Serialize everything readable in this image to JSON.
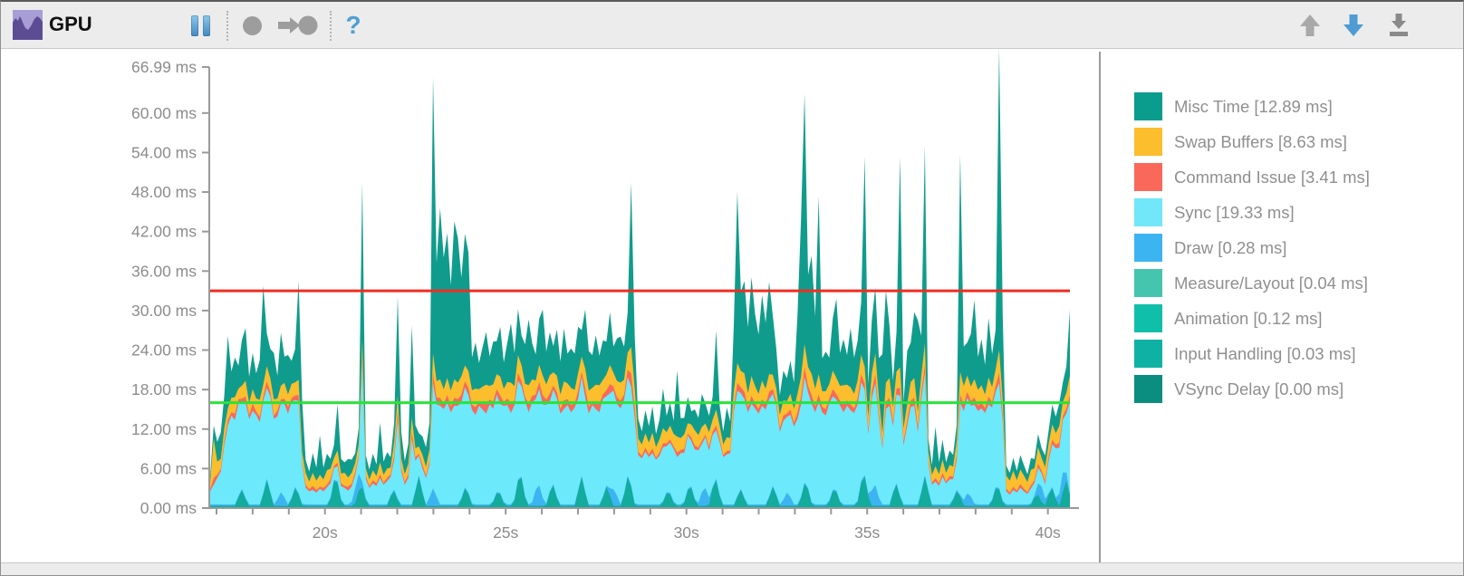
{
  "toolbar": {
    "title": "GPU",
    "pause_label": "Pause",
    "record_label": "Record",
    "attach_label": "Attach",
    "help_label": "?",
    "scroll_up_label": "Scroll up",
    "scroll_down_label": "Scroll down",
    "save_label": "Export"
  },
  "legend": {
    "items": [
      {
        "label": "Misc Time [12.89 ms]",
        "color": "#0a9c8d"
      },
      {
        "label": "Swap Buffers [8.63 ms]",
        "color": "#fcbe2d"
      },
      {
        "label": "Command Issue [3.41 ms]",
        "color": "#fa685a"
      },
      {
        "label": "Sync [19.33 ms]",
        "color": "#71e7f9"
      },
      {
        "label": "Draw [0.28 ms]",
        "color": "#3cb4f1"
      },
      {
        "label": "Measure/Layout [0.04 ms]",
        "color": "#45c5ad"
      },
      {
        "label": "Animation [0.12 ms]",
        "color": "#10bfa9"
      },
      {
        "label": "Input Handling [0.03 ms]",
        "color": "#0db2a5"
      },
      {
        "label": "VSync Delay [0.00 ms]",
        "color": "#0b8d7f"
      }
    ]
  },
  "chart_data": {
    "type": "area",
    "stacked": true,
    "unit": "ms",
    "axis_color": "#999999",
    "label_color": "#8c8c8c",
    "y_max": 66.99,
    "y_ticks": [
      {
        "label": "66.99 ms",
        "value": 66.99
      },
      {
        "label": "60.00 ms",
        "value": 60
      },
      {
        "label": "54.00 ms",
        "value": 54
      },
      {
        "label": "48.00 ms",
        "value": 48
      },
      {
        "label": "42.00 ms",
        "value": 42
      },
      {
        "label": "36.00 ms",
        "value": 36
      },
      {
        "label": "30.00 ms",
        "value": 30
      },
      {
        "label": "24.00 ms",
        "value": 24
      },
      {
        "label": "18.00 ms",
        "value": 18
      },
      {
        "label": "12.00 ms",
        "value": 12
      },
      {
        "label": "6.00 ms",
        "value": 6
      },
      {
        "label": "0.00 ms",
        "value": 0
      }
    ],
    "x_ticks": [
      {
        "label": "20s",
        "value": 20
      },
      {
        "label": "25s",
        "value": 25
      },
      {
        "label": "30s",
        "value": 30
      },
      {
        "label": "35s",
        "value": 35
      },
      {
        "label": "40s",
        "value": 40
      }
    ],
    "x_minor_tick_step_s": 1,
    "x_domain_s": [
      16.83,
      40.61
    ],
    "thresholds": [
      {
        "name": "30fps-line",
        "value_ms": 33,
        "color": "#ef2e22"
      },
      {
        "name": "60fps-line",
        "value_ms": 16,
        "color": "#2be23a"
      }
    ],
    "series_stack_bottom_to_top": [
      {
        "name": "VSync Delay / Input Handling / Animation / Measure-Layout",
        "color": "#12ab9c",
        "baseline_ms": 0.35,
        "spikes_t_v": [
          [
            17.7,
            2.5
          ],
          [
            18.4,
            4
          ],
          [
            19.2,
            3
          ],
          [
            20.3,
            5
          ],
          [
            21.0,
            3.5
          ],
          [
            21.9,
            2.5
          ],
          [
            22.6,
            4.5
          ],
          [
            23.9,
            3
          ],
          [
            24.8,
            2.5
          ],
          [
            25.4,
            5.5
          ],
          [
            26.3,
            3.5
          ],
          [
            27.1,
            4.5
          ],
          [
            27.8,
            3
          ],
          [
            28.4,
            5
          ],
          [
            29.5,
            2.5
          ],
          [
            30.1,
            3.5
          ],
          [
            30.8,
            4.5
          ],
          [
            31.5,
            2.5
          ],
          [
            32.4,
            3
          ],
          [
            33.3,
            4
          ],
          [
            34.1,
            3
          ],
          [
            34.9,
            5.5
          ],
          [
            35.8,
            3.5
          ],
          [
            36.6,
            4.5
          ],
          [
            37.5,
            2.5
          ],
          [
            38.6,
            3.5
          ],
          [
            39.7,
            2
          ],
          [
            40.1,
            3
          ],
          [
            40.5,
            4
          ]
        ]
      },
      {
        "name": "Draw",
        "color": "#3cb4f1",
        "baseline_ms": 0.2,
        "spikes_t_v": [
          [
            18.8,
            2
          ],
          [
            20.9,
            3
          ],
          [
            23.0,
            2.5
          ],
          [
            25.9,
            3.5
          ],
          [
            28.0,
            2.5
          ],
          [
            30.5,
            3
          ],
          [
            32.8,
            2
          ],
          [
            35.2,
            3.5
          ],
          [
            37.8,
            2
          ],
          [
            39.8,
            2.5
          ],
          [
            40.4,
            3
          ]
        ]
      },
      {
        "name": "Sync",
        "color": "#6ce9fb",
        "values": [
          2,
          3,
          4,
          5,
          9,
          12,
          13.5,
          12.8,
          14,
          13.2,
          14.5,
          13,
          14.2,
          13.6,
          12.5,
          14,
          13.8,
          14.5,
          13,
          12.6,
          13.5,
          14.2,
          13.8,
          14.6,
          13.2,
          14,
          6,
          2.5,
          2,
          2.2,
          1.8,
          2.4,
          2,
          2.6,
          2.2,
          1.8,
          2.3,
          2,
          2.5,
          2.1,
          2.3,
          2,
          2.4,
          18,
          3,
          2.5,
          3.2,
          2.8,
          4,
          3,
          3.5,
          2.8,
          4.5,
          12,
          5,
          3,
          4,
          10,
          4.5,
          3,
          3.5,
          4,
          5,
          16,
          14,
          15,
          14.5,
          15.5,
          14,
          15,
          15,
          14.5,
          15.2,
          14.8,
          14.2,
          13.6,
          15,
          14.4,
          13.8,
          15.2,
          14,
          14.8,
          13.5,
          14.6,
          15.1,
          13.9,
          14.3,
          15,
          13.7,
          14.5,
          14,
          15.2,
          13.8,
          14.6,
          14.2,
          15,
          13.6,
          14.4,
          14.9,
          13.8,
          14.5,
          15.1,
          14,
          14.7,
          13.9,
          15,
          14.3,
          13.8,
          15.1,
          14.5,
          14,
          14.8,
          13.6,
          14.4,
          15,
          13.9,
          14.6,
          14.2,
          15,
          15,
          13,
          7.5,
          7,
          8,
          7.2,
          7.8,
          6.8,
          7.4,
          8.2,
          7,
          7.6,
          8,
          7.2,
          7.8,
          7.4,
          8.1,
          6.9,
          7.5,
          8,
          7.3,
          7.7,
          7.1,
          7.9,
          7.4,
          8,
          7.2,
          7.6,
          7.8,
          14,
          16,
          14.5,
          15,
          14,
          15.3,
          14.6,
          13.8,
          15,
          14.4,
          14.8,
          14,
          13.5,
          11,
          12,
          11.5,
          12.5,
          11.8,
          13,
          14,
          16,
          14.5,
          15,
          14,
          15.5,
          14,
          13.5,
          14.8,
          14.2,
          13.8,
          14.5,
          14,
          15,
          14.3,
          13.9,
          14.6,
          15,
          13,
          9,
          14,
          15.5,
          12,
          8.5,
          14.5,
          15,
          10,
          13.5,
          15.2,
          9,
          12,
          14.8,
          15,
          11,
          14,
          15.5,
          4,
          3,
          3.5,
          2.8,
          4.2,
          3.2,
          3.8,
          3,
          4.5,
          14,
          13.5,
          14.5,
          13.8,
          15,
          14.2,
          14.6,
          13.9,
          15.2,
          14,
          14.5,
          16,
          12,
          2,
          1.5,
          2.2,
          1.8,
          2.5,
          2,
          1.6,
          2.3,
          1.9,
          2.4,
          2,
          2.2,
          5,
          6.5,
          7.5,
          7,
          8,
          9,
          14
        ]
      },
      {
        "name": "Command Issue",
        "color": "#fa685a",
        "values": [
          0.3,
          1,
          0.5,
          0.4,
          0.6,
          0.8,
          0.5,
          1,
          0.7,
          0.5,
          0.9,
          0.6,
          1.1,
          0.5,
          0.8,
          0.6,
          1,
          0.7,
          0.5,
          0.9,
          0.6,
          0.8,
          1,
          0.5,
          0.7,
          0.9,
          0.3,
          0.5,
          0.3,
          0.6,
          0.4,
          0.3,
          0.5,
          0.4,
          0.6,
          0.3,
          0.5,
          0.4,
          0.3,
          0.6,
          0.4,
          0.5,
          0.3,
          1,
          0.4,
          0.3,
          0.5,
          0.4,
          0.6,
          0.3,
          0.5,
          0.4,
          0.7,
          1.2,
          0.5,
          0.4,
          0.6,
          1,
          0.5,
          0.3,
          0.6,
          0.4,
          0.5,
          1.5,
          1,
          1.2,
          0.8,
          1.1,
          0.9,
          1.2,
          1,
          1.2,
          0.9,
          1.1,
          0.8,
          1.2,
          0.6,
          1,
          1.4,
          0.7,
          1.1,
          0.8,
          1.3,
          0.6,
          1,
          1.5,
          0.7,
          1.2,
          0.8,
          0.6,
          1.3,
          1,
          0.7,
          1.1,
          1.4,
          0.8,
          1.2,
          0.6,
          1,
          0.7,
          1.3,
          0.9,
          1.1,
          0.6,
          1.2,
          0.8,
          1.4,
          1,
          0.6,
          1.1,
          1.3,
          0.7,
          0.9,
          1.4,
          0.6,
          1,
          1.2,
          0.8,
          1.1,
          2,
          1.5,
          0.5,
          0.4,
          0.6,
          0.4,
          0.7,
          0.3,
          0.5,
          0.6,
          0.4,
          0.5,
          0.4,
          0.7,
          0.5,
          0.6,
          0.3,
          0.5,
          0.6,
          0.4,
          0.5,
          0.4,
          0.6,
          0.5,
          0.7,
          0.5,
          0.3,
          0.5,
          0.4,
          0.8,
          1.2,
          0.9,
          1.1,
          0.7,
          1.2,
          0.8,
          0.7,
          1,
          0.8,
          1.1,
          0.7,
          0.6,
          0.6,
          0.8,
          0.5,
          0.8,
          0.6,
          1,
          1.2,
          1.5,
          1,
          1.3,
          0.9,
          1.2,
          0.8,
          1,
          0.7,
          1.1,
          0.8,
          0.7,
          1.2,
          0.8,
          0.9,
          0.7,
          1,
          1.2,
          0.9,
          0.6,
          1,
          1.3,
          0.8,
          0.5,
          1.1,
          1.2,
          0.7,
          0.9,
          1.2,
          0.6,
          0.8,
          1,
          1.2,
          0.7,
          0.9,
          1.3,
          0.4,
          0.3,
          0.5,
          0.4,
          0.6,
          0.3,
          0.5,
          0.4,
          0.7,
          1.2,
          1,
          0.9,
          0.7,
          1.1,
          0.8,
          0.9,
          0.7,
          1.2,
          0.8,
          0.9,
          1.5,
          0.9,
          0.4,
          0.3,
          0.5,
          0.3,
          0.6,
          0.4,
          0.3,
          0.5,
          0.4,
          0.6,
          0.4,
          0.5,
          0.6,
          0.7,
          0.5,
          0.8,
          0.6,
          0.7,
          1
        ]
      },
      {
        "name": "Swap Buffers",
        "color": "#fcbe2d",
        "values": [
          1,
          6,
          2,
          1.5,
          2,
          1.8,
          2.2,
          2.5,
          1.6,
          2,
          2.4,
          1.8,
          2.2,
          2,
          2.6,
          1.9,
          2.3,
          2,
          2.5,
          1.8,
          2.1,
          2.4,
          1.9,
          2.2,
          2,
          2.3,
          1.5,
          1.8,
          1.2,
          2,
          1.4,
          1.8,
          1.3,
          2.2,
          1.6,
          1.2,
          1.9,
          1.5,
          2,
          1.4,
          1.7,
          1.3,
          1.8,
          2.5,
          1.2,
          1,
          1.5,
          1.1,
          1.8,
          1.2,
          1.4,
          1,
          2,
          2.5,
          1.5,
          1.2,
          1.6,
          2.2,
          1.4,
          1.1,
          1.5,
          1.3,
          1.8,
          3,
          2.5,
          2.8,
          2.2,
          2.6,
          2.4,
          2.8,
          2.5,
          2.8,
          2.4,
          2.6,
          2.2,
          2.8,
          1.9,
          2.5,
          3,
          2.1,
          2.6,
          2.3,
          2.9,
          2,
          2.5,
          3.1,
          2.2,
          2.7,
          2.4,
          2,
          2.8,
          2.5,
          2.1,
          2.6,
          3,
          2.3,
          2.8,
          2,
          2.5,
          2.2,
          2.9,
          2.4,
          2.6,
          2.1,
          2.7,
          2.3,
          3,
          2.5,
          2,
          2.6,
          2.8,
          2.2,
          2.4,
          2.9,
          2.1,
          2.5,
          2.7,
          2.3,
          2.6,
          4,
          3,
          2,
          1.7,
          2.2,
          1.8,
          2.4,
          1.6,
          2,
          2.3,
          1.7,
          2.1,
          1.9,
          2.4,
          1.8,
          2.2,
          1.6,
          2,
          2.3,
          1.9,
          2.1,
          1.7,
          2.2,
          1.8,
          2.4,
          2,
          1.6,
          2.1,
          1.9,
          2.5,
          3,
          2.5,
          2.8,
          2.2,
          3,
          2.6,
          2.3,
          2.8,
          2.4,
          2.7,
          2.2,
          2,
          2,
          2.3,
          1.9,
          2.4,
          2.1,
          2.8,
          3,
          3.5,
          2.9,
          3.2,
          2.7,
          3.1,
          2.4,
          2.7,
          2.2,
          2.8,
          2.5,
          2.3,
          2.9,
          2.4,
          2.6,
          2.2,
          2.7,
          3,
          2.5,
          2,
          2.8,
          3.2,
          2.4,
          1.8,
          2.9,
          3,
          2.2,
          2.6,
          3.1,
          2,
          2.5,
          2.8,
          3,
          2.3,
          2.7,
          3.2,
          1.5,
          1.2,
          1.8,
          1.4,
          2,
          1.3,
          1.7,
          1.5,
          2.2,
          3.5,
          2.8,
          2.5,
          2.2,
          2.8,
          2.4,
          2.6,
          2.1,
          2.9,
          2.3,
          2.5,
          3.5,
          2.5,
          2,
          1.8,
          2.4,
          1.6,
          2.2,
          2,
          1.5,
          2.3,
          1.8,
          2.5,
          1.9,
          2.1,
          2,
          2.3,
          1.8,
          2.5,
          2.1,
          2.4,
          3
        ]
      },
      {
        "name": "Misc Time",
        "color": "#109c8c",
        "values": [
          1,
          2,
          3,
          4,
          5,
          11,
          4,
          6,
          3.5,
          7,
          8,
          4,
          5.5,
          3.8,
          6,
          15,
          5,
          4.5,
          7,
          3.5,
          8,
          4,
          6,
          3.5,
          5,
          15,
          8,
          2,
          1.5,
          3,
          2,
          6,
          1.8,
          2.5,
          1.5,
          2,
          7,
          2.2,
          1.6,
          2.8,
          2,
          1.5,
          2.5,
          24,
          2,
          1.5,
          2.5,
          1.8,
          6,
          2,
          2.5,
          1.6,
          3,
          15,
          4,
          2,
          3,
          14,
          3.5,
          2,
          2.8,
          3,
          4,
          42,
          18,
          26,
          20,
          22,
          16,
          24,
          22,
          15,
          20,
          18,
          5,
          7,
          4,
          6,
          8,
          4.5,
          6.5,
          5,
          7.5,
          4,
          6,
          9,
          5,
          7,
          4.5,
          6,
          10,
          5.5,
          4,
          7,
          10,
          5,
          6.5,
          4,
          7,
          5,
          8,
          4.5,
          6,
          5.5,
          7,
          4,
          9,
          6,
          5,
          7.5,
          4.5,
          6,
          5,
          8,
          4,
          6.5,
          7,
          5,
          6,
          25,
          8,
          3,
          2,
          3.5,
          2.5,
          4,
          2,
          3,
          6,
          2.5,
          3.5,
          2,
          10,
          3,
          2.5,
          4,
          2,
          3.2,
          2.6,
          5,
          3,
          2.5,
          3.5,
          12,
          3,
          2,
          4.5,
          2.5,
          10,
          26,
          12,
          14,
          10,
          15,
          11,
          9,
          13,
          10,
          14,
          9,
          6,
          3,
          4.5,
          3.5,
          5,
          4,
          12,
          24,
          38,
          14,
          18,
          11,
          27,
          5,
          6,
          4,
          8,
          12,
          5,
          7,
          4.5,
          9,
          5.5,
          6,
          8,
          32,
          5,
          8,
          10,
          6,
          12,
          14,
          8,
          4,
          6,
          32,
          4,
          8,
          6,
          10,
          14,
          6,
          30,
          2,
          1.5,
          6,
          1.8,
          3,
          1.6,
          2.2,
          1.8,
          2.5,
          33,
          6,
          5,
          8,
          12,
          5,
          7,
          4.5,
          9,
          5,
          6,
          46,
          13,
          1.5,
          1.2,
          2,
          1.4,
          2.2,
          1.6,
          1.2,
          1.8,
          1.4,
          2,
          1.5,
          1.8,
          2,
          3,
          2.5,
          3.5,
          3,
          4,
          10
        ]
      }
    ]
  }
}
